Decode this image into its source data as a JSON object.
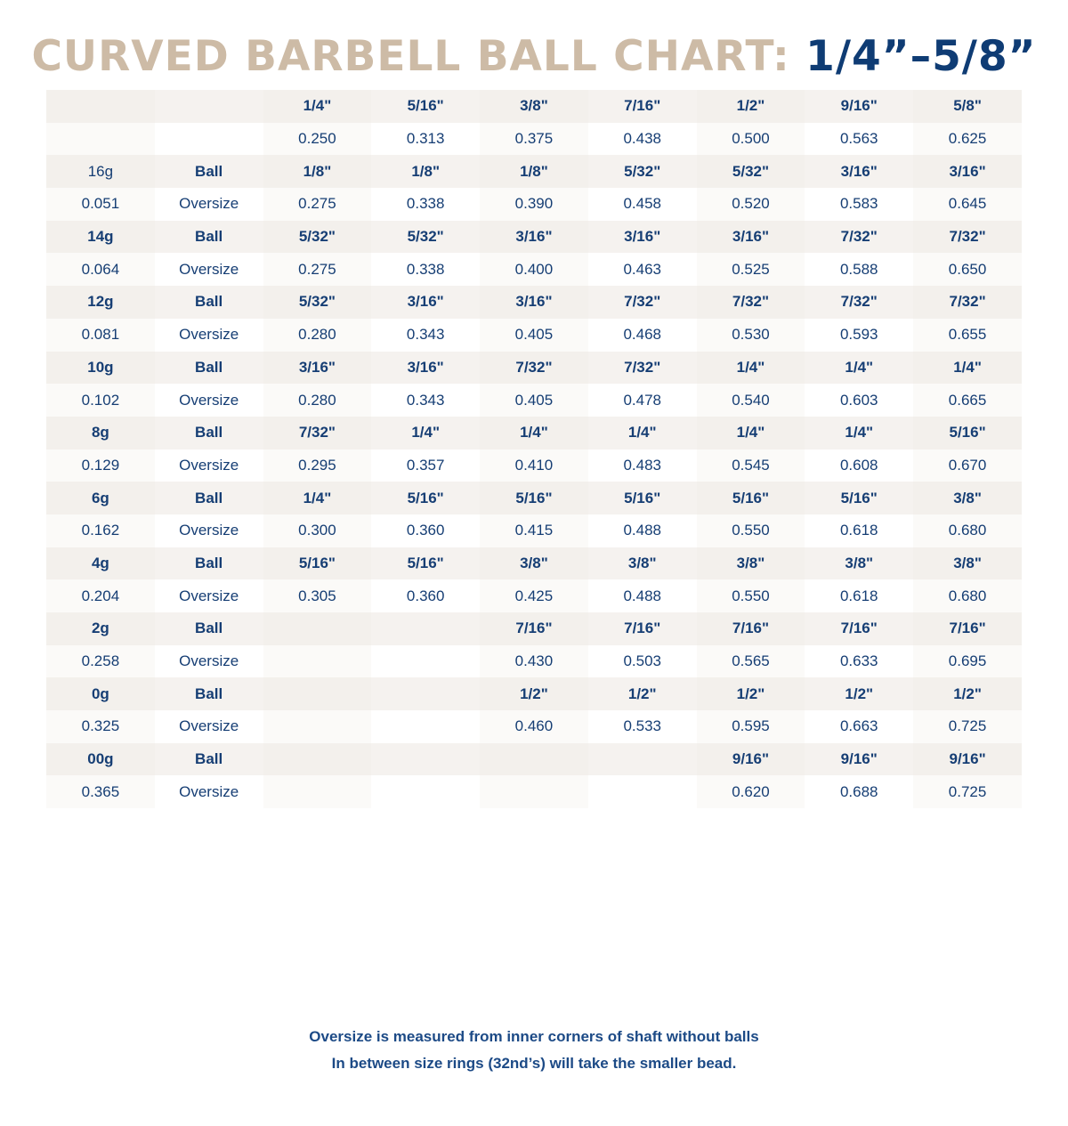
{
  "title": {
    "part1": "CURVED BARBELL BALL CHART: ",
    "part2": "1/4”–5/8”"
  },
  "colors": {
    "title_tan": "#cdbba6",
    "title_blue": "#0f3c74",
    "text": "#163e74"
  },
  "header": {
    "sizes": [
      "1/4\"",
      "5/16\"",
      "3/8\"",
      "7/16\"",
      "1/2\"",
      "9/16\"",
      "5/8\""
    ],
    "decimals": [
      "0.250",
      "0.313",
      "0.375",
      "0.438",
      "0.500",
      "0.563",
      "0.625"
    ]
  },
  "rows": [
    {
      "gauge": "16g",
      "gauge_mm": "0.051",
      "ball_label": "Ball",
      "oversize_label": "Oversize",
      "ball": [
        "1/8\"",
        "1/8\"",
        "1/8\"",
        "5/32\"",
        "5/32\"",
        "3/16\"",
        "3/16\""
      ],
      "oversize": [
        "0.275",
        "0.338",
        "0.390",
        "0.458",
        "0.520",
        "0.583",
        "0.645"
      ]
    },
    {
      "gauge": "14g",
      "gauge_mm": "0.064",
      "ball_label": "Ball",
      "oversize_label": "Oversize",
      "ball": [
        "5/32\"",
        "5/32\"",
        "3/16\"",
        "3/16\"",
        "3/16\"",
        "7/32\"",
        "7/32\""
      ],
      "oversize": [
        "0.275",
        "0.338",
        "0.400",
        "0.463",
        "0.525",
        "0.588",
        "0.650"
      ]
    },
    {
      "gauge": "12g",
      "gauge_mm": "0.081",
      "ball_label": "Ball",
      "oversize_label": "Oversize",
      "ball": [
        "5/32\"",
        "3/16\"",
        "3/16\"",
        "7/32\"",
        "7/32\"",
        "7/32\"",
        "7/32\""
      ],
      "oversize": [
        "0.280",
        "0.343",
        "0.405",
        "0.468",
        "0.530",
        "0.593",
        "0.655"
      ]
    },
    {
      "gauge": "10g",
      "gauge_mm": "0.102",
      "ball_label": "Ball",
      "oversize_label": "Oversize",
      "ball": [
        "3/16\"",
        "3/16\"",
        "7/32\"",
        "7/32\"",
        "1/4\"",
        "1/4\"",
        "1/4\""
      ],
      "oversize": [
        "0.280",
        "0.343",
        "0.405",
        "0.478",
        "0.540",
        "0.603",
        "0.665"
      ]
    },
    {
      "gauge": "8g",
      "gauge_mm": "0.129",
      "ball_label": "Ball",
      "oversize_label": "Oversize",
      "ball": [
        "7/32\"",
        "1/4\"",
        "1/4\"",
        "1/4\"",
        "1/4\"",
        "1/4\"",
        "5/16\""
      ],
      "oversize": [
        "0.295",
        "0.357",
        "0.410",
        "0.483",
        "0.545",
        "0.608",
        "0.670"
      ]
    },
    {
      "gauge": "6g",
      "gauge_mm": "0.162",
      "ball_label": "Ball",
      "oversize_label": "Oversize",
      "ball": [
        "1/4\"",
        "5/16\"",
        "5/16\"",
        "5/16\"",
        "5/16\"",
        "5/16\"",
        "3/8\""
      ],
      "oversize": [
        "0.300",
        "0.360",
        "0.415",
        "0.488",
        "0.550",
        "0.618",
        "0.680"
      ]
    },
    {
      "gauge": "4g",
      "gauge_mm": "0.204",
      "ball_label": "Ball",
      "oversize_label": "Oversize",
      "ball": [
        "5/16\"",
        "5/16\"",
        "3/8\"",
        "3/8\"",
        "3/8\"",
        "3/8\"",
        "3/8\""
      ],
      "oversize": [
        "0.305",
        "0.360",
        "0.425",
        "0.488",
        "0.550",
        "0.618",
        "0.680"
      ]
    },
    {
      "gauge": "2g",
      "gauge_mm": "0.258",
      "ball_label": "Ball",
      "oversize_label": "Oversize",
      "ball": [
        "",
        "",
        "7/16\"",
        "7/16\"",
        "7/16\"",
        "7/16\"",
        "7/16\""
      ],
      "oversize": [
        "",
        "",
        "0.430",
        "0.503",
        "0.565",
        "0.633",
        "0.695"
      ]
    },
    {
      "gauge": "0g",
      "gauge_mm": "0.325",
      "ball_label": "Ball",
      "oversize_label": "Oversize",
      "ball": [
        "",
        "",
        "1/2\"",
        "1/2\"",
        "1/2\"",
        "1/2\"",
        "1/2\""
      ],
      "oversize": [
        "",
        "",
        "0.460",
        "0.533",
        "0.595",
        "0.663",
        "0.725"
      ]
    },
    {
      "gauge": "00g",
      "gauge_mm": "0.365",
      "ball_label": "Ball",
      "oversize_label": "Oversize",
      "ball": [
        "",
        "",
        "",
        "",
        "9/16\"",
        "9/16\"",
        "9/16\""
      ],
      "oversize": [
        "",
        "",
        "",
        "",
        "0.620",
        "0.688",
        "0.725"
      ]
    }
  ],
  "footer": {
    "line1": "Oversize is measured from inner corners of shaft without balls",
    "line2": "In between size rings (32nd’s) will take the smaller bead."
  }
}
